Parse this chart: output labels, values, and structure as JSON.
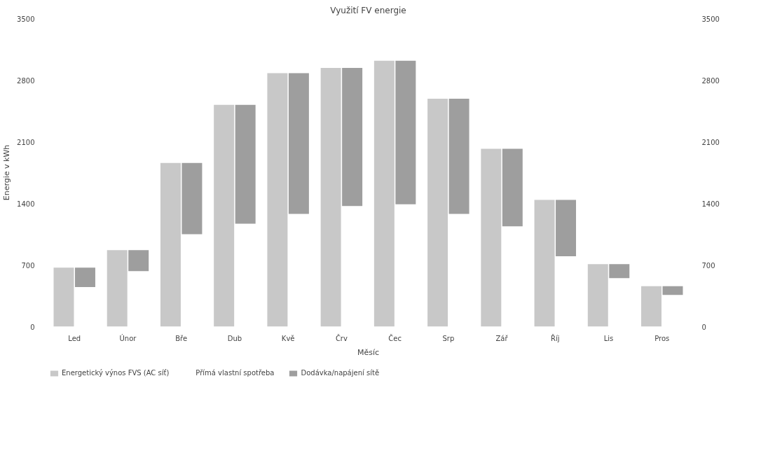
{
  "chart_data": {
    "type": "bar",
    "title": "Využití FV energie",
    "xlabel": "Měsíc",
    "ylabel": "Energie v kWh",
    "categories": [
      "Led",
      "Únor",
      "Bře",
      "Dub",
      "Kvě",
      "Črv",
      "Čec",
      "Srp",
      "Zář",
      "Říj",
      "Lis",
      "Pros"
    ],
    "series": [
      {
        "name": "Energetický výnos FVS (AC síť)",
        "color": "#c8c8c8",
        "values": [
          670,
          870,
          1860,
          2520,
          2880,
          2940,
          3020,
          2590,
          2020,
          1440,
          710,
          460
        ]
      },
      {
        "name": "Přímá vlastní spotřeba",
        "values": [
          null,
          null,
          null,
          null,
          null,
          null,
          null,
          null,
          null,
          null,
          null,
          null
        ]
      },
      {
        "name": "Dodávka/napájení sítě",
        "color": "#9e9e9e",
        "base": [
          450,
          630,
          1050,
          1170,
          1280,
          1370,
          1390,
          1280,
          1140,
          800,
          550,
          360
        ],
        "values": [
          220,
          240,
          810,
          1350,
          1600,
          1570,
          1630,
          1310,
          880,
          640,
          160,
          100
        ]
      }
    ],
    "ylim": [
      0,
      3500
    ],
    "yticks": [
      0,
      700,
      1400,
      2100,
      2800,
      3500
    ],
    "y2lim": [
      0,
      3500
    ],
    "y2ticks": [
      0,
      700,
      1400,
      2100,
      2800,
      3500
    ],
    "grid": false,
    "legend": "bottom left"
  }
}
